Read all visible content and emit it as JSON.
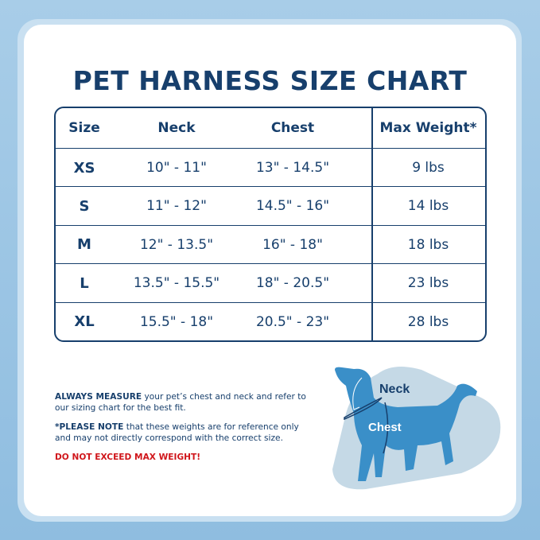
{
  "title": "PET HARNESS SIZE CHART",
  "table": {
    "headers": [
      "Size",
      "Neck",
      "Chest",
      "Max Weight*"
    ],
    "rows": [
      [
        "XS",
        "10\" - 11\"",
        "13\" - 14.5\"",
        "9 lbs"
      ],
      [
        "S",
        "11\" - 12\"",
        "14.5\" - 16\"",
        "14 lbs"
      ],
      [
        "M",
        "12\" - 13.5\"",
        "16\" - 18\"",
        "18 lbs"
      ],
      [
        "L",
        "13.5\" - 15.5\"",
        "18\" - 20.5\"",
        "23 lbs"
      ],
      [
        "XL",
        "15.5\" - 18\"",
        "20.5\" - 23\"",
        "28 lbs"
      ]
    ]
  },
  "notes": {
    "measure_bold": "ALWAYS MEASURE",
    "measure_text": " your pet’s chest and neck and refer to our sizing chart for the best fit.",
    "note_bold": "*PLEASE NOTE",
    "note_text": " that these weights are for reference only and may not directly correspond with the correct size.",
    "warning": "DO NOT EXCEED MAX WEIGHT!"
  },
  "illustration": {
    "neck_label": "Neck",
    "chest_label": "Chest",
    "dog_color": "#3a8fc8",
    "blob_color": "#c5d9e6"
  },
  "colors": {
    "navy": "#173f6c",
    "warning": "#d0161b"
  }
}
